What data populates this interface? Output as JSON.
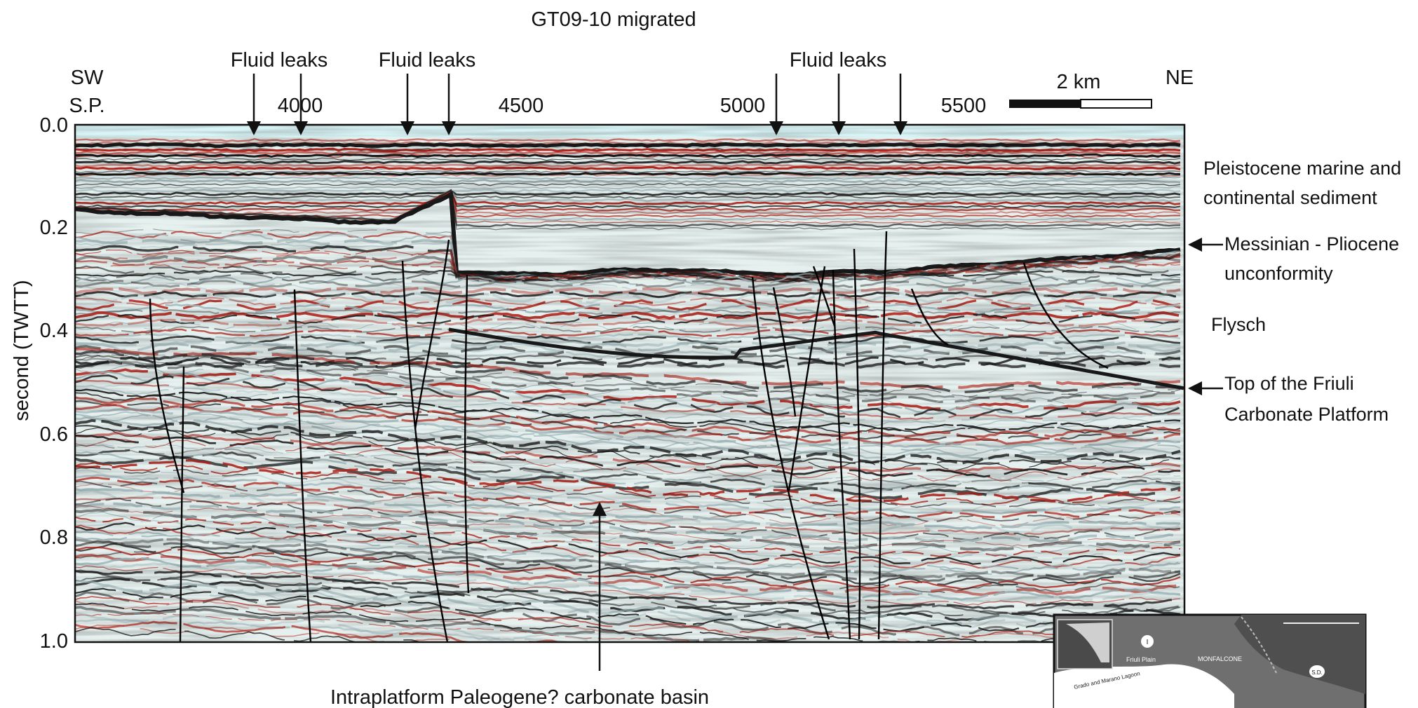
{
  "title": "GT09-10 migrated",
  "direction": {
    "left": "SW",
    "right": "NE"
  },
  "sp_label": "S.P.",
  "sp_ticks": [
    "4000",
    "4500",
    "5000",
    "5500"
  ],
  "scale_bar": {
    "label": "2 km"
  },
  "y_axis": {
    "label": "second (TWTT)",
    "ticks": [
      "0.0",
      "0.2",
      "0.4",
      "0.6",
      "0.8",
      "1.0"
    ]
  },
  "fluid_leaks": [
    "Fluid leaks",
    "Fluid leaks",
    "Fluid leaks"
  ],
  "annotations": {
    "pleistocene_1": "Pleistocene marine and",
    "pleistocene_2": "continental sediment",
    "messinian_1": "Messinian - Pliocene",
    "messinian_2": "unconformity",
    "flysch": "Flysch",
    "friuli_1": "Top of the Friuli",
    "friuli_2": "Carbonate Platform",
    "basin": "Intraplatform Paleogene? carbonate basin"
  },
  "inset_map": {
    "labels": [
      "Friuli Plain",
      "MONFALCONE",
      "Grado and Marano Lagoon"
    ],
    "markers": [
      "I",
      "S.D."
    ]
  },
  "colors": {
    "seismic_red": "#b3261e",
    "seismic_black": "#1a1a1a",
    "seismic_pale": "#dfeef0",
    "water": "#d9f4f6"
  }
}
